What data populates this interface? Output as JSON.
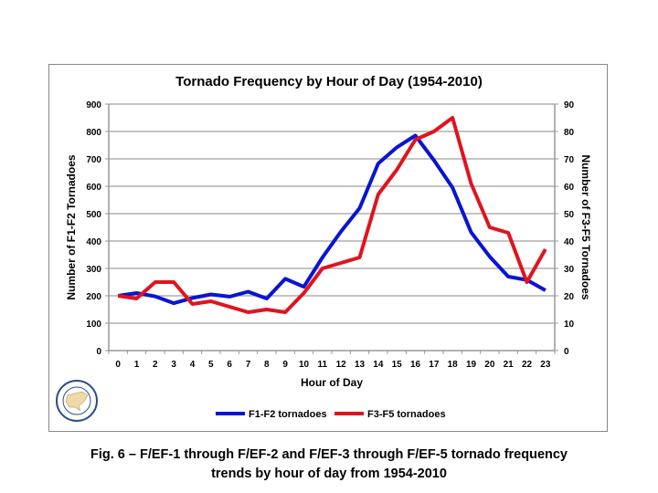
{
  "chart_data": {
    "type": "line",
    "title": "Tornado Frequency by Hour of Day (1954-2010)",
    "xlabel": "Hour of Day",
    "ylabel": "Number of F1-F2 Tornadoes",
    "y2label": "Number of F3-F5 Tornadoes",
    "categories": [
      "0",
      "1",
      "2",
      "3",
      "4",
      "5",
      "6",
      "7",
      "8",
      "9",
      "10",
      "11",
      "12",
      "13",
      "14",
      "15",
      "16",
      "17",
      "18",
      "19",
      "20",
      "21",
      "22",
      "23"
    ],
    "ylim": [
      0,
      900
    ],
    "y2lim": [
      0,
      90
    ],
    "yticks": [
      "0",
      "100",
      "200",
      "300",
      "400",
      "500",
      "600",
      "700",
      "800",
      "900"
    ],
    "y2ticks": [
      "0",
      "10",
      "20",
      "30",
      "40",
      "50",
      "60",
      "70",
      "80",
      "90"
    ],
    "grid": true,
    "legend_position": "bottom",
    "series": [
      {
        "name": "F1-F2 tornadoes",
        "axis": "left",
        "color": "#0a14d2",
        "values": [
          200,
          210,
          198,
          173,
          192,
          205,
          197,
          215,
          190,
          262,
          233,
          340,
          435,
          520,
          683,
          742,
          785,
          695,
          595,
          432,
          343,
          270,
          258,
          220
        ]
      },
      {
        "name": "F3-F5 tornadoes",
        "axis": "right",
        "color": "#e0141e",
        "values": [
          20,
          19,
          25,
          25,
          17,
          18,
          16,
          14,
          15,
          14,
          21,
          30,
          32,
          34,
          57,
          66,
          77,
          80,
          85,
          61,
          45,
          43,
          25,
          37
        ]
      }
    ]
  },
  "logo_text": "SOUTHEAST REGIONAL CLIMATE CENTER",
  "caption": {
    "line1": "Fig. 6 – F/EF-1 through F/EF-2 and F/EF-3 through F/EF-5 tornado frequency",
    "line2": "trends by hour of day from 1954-2010"
  }
}
